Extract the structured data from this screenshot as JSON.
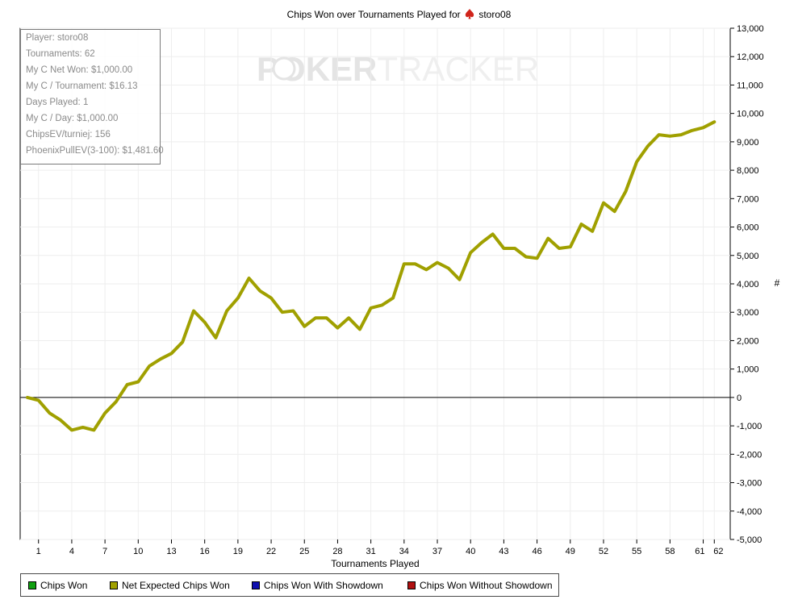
{
  "title": {
    "prefix": "Chips Won over Tournaments Played for",
    "player": "storo08",
    "icon": "pokerstars-spade-icon"
  },
  "watermark": {
    "text_left": "PO",
    "text_right": "KER",
    "text_faded": "TRACKER"
  },
  "stats": [
    "Player: storo08",
    "Tournaments: 62",
    "My C Net Won: $1,000.00",
    "My C / Tournament: $16.13",
    "Days Played: 1",
    "My C / Day: $1,000.00",
    "ChipsEV/turniej: 156",
    "PhoenixPullEV(3-100): $1,481.60"
  ],
  "legend": [
    {
      "label": "Chips Won",
      "color": "#10a010"
    },
    {
      "label": "Net Expected Chips Won",
      "color": "#a0a000"
    },
    {
      "label": "Chips Won With Showdown",
      "color": "#1010b0"
    },
    {
      "label": "Chips Won Without Showdown",
      "color": "#b01010"
    }
  ],
  "chart_data": {
    "type": "line",
    "title": "Chips Won over Tournaments Played for storo08",
    "xlabel": "Tournaments Played",
    "ylabel": "#",
    "xlim": [
      0,
      63
    ],
    "ylim": [
      -5000,
      13000
    ],
    "x_ticks": [
      1,
      4,
      7,
      10,
      13,
      16,
      19,
      22,
      25,
      28,
      31,
      34,
      37,
      40,
      43,
      46,
      49,
      52,
      55,
      58,
      61,
      62
    ],
    "y_ticks": [
      -5000,
      -4000,
      -3000,
      -2000,
      -1000,
      0,
      1000,
      2000,
      3000,
      4000,
      5000,
      6000,
      7000,
      8000,
      9000,
      10000,
      11000,
      12000,
      13000
    ],
    "y_tick_labels": [
      "-5,000",
      "-4,000",
      "-3,000",
      "-2,000",
      "-1,000",
      "0",
      "1,000",
      "2,000",
      "3,000",
      "4,000",
      "5,000",
      "6,000",
      "7,000",
      "8,000",
      "9,000",
      "10,000",
      "11,000",
      "12,000",
      "13,000"
    ],
    "grid": true,
    "legend_position": "bottom",
    "series": [
      {
        "name": "Net Expected Chips Won",
        "color": "#a0a000",
        "x": [
          0,
          1,
          2,
          3,
          4,
          5,
          6,
          7,
          8,
          9,
          10,
          11,
          12,
          13,
          14,
          15,
          16,
          17,
          18,
          19,
          20,
          21,
          22,
          23,
          24,
          25,
          26,
          27,
          28,
          29,
          30,
          31,
          32,
          33,
          34,
          35,
          36,
          37,
          38,
          39,
          40,
          41,
          42,
          43,
          44,
          45,
          46,
          47,
          48,
          49,
          50,
          51,
          52,
          53,
          54,
          55,
          56,
          57,
          58,
          59,
          60,
          61,
          62
        ],
        "values": [
          0,
          -100,
          -550,
          -800,
          -1150,
          -1050,
          -1150,
          -550,
          -150,
          450,
          550,
          1100,
          1350,
          1550,
          1950,
          3050,
          2650,
          2100,
          3050,
          3500,
          4200,
          3750,
          3500,
          3000,
          3050,
          2500,
          2800,
          2800,
          2450,
          2800,
          2400,
          3150,
          3250,
          3500,
          4700,
          4700,
          4500,
          4750,
          4550,
          4150,
          5100,
          5450,
          5750,
          5250,
          5250,
          4950,
          4900,
          5600,
          5250,
          5300,
          6100,
          5850,
          6850,
          6550,
          7250,
          8300,
          8850,
          9250,
          9200,
          9250,
          9400,
          9500,
          9700
        ]
      }
    ]
  }
}
